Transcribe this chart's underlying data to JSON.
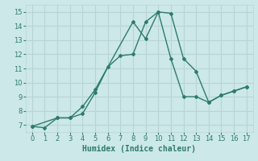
{
  "xlabel": "Humidex (Indice chaleur)",
  "xlim": [
    -0.5,
    17.5
  ],
  "ylim": [
    6.5,
    15.5
  ],
  "xticks": [
    0,
    1,
    2,
    3,
    4,
    5,
    6,
    7,
    8,
    9,
    10,
    11,
    12,
    13,
    14,
    15,
    16,
    17
  ],
  "yticks": [
    7,
    8,
    9,
    10,
    11,
    12,
    13,
    14,
    15
  ],
  "background_color": "#cce8e8",
  "grid_color": "#b8d4d4",
  "line_color": "#2e7b6e",
  "line1_x": [
    0,
    1,
    2,
    3,
    4,
    5,
    8,
    9,
    10,
    11,
    12,
    13,
    14,
    15,
    16,
    17
  ],
  "line1_y": [
    6.9,
    6.8,
    7.5,
    7.5,
    8.3,
    9.5,
    14.3,
    13.1,
    15.0,
    14.9,
    11.7,
    10.8,
    8.6,
    9.1,
    9.4,
    9.7
  ],
  "line2_x": [
    0,
    2,
    3,
    4,
    5,
    6,
    7,
    8,
    9,
    10,
    11,
    12,
    13,
    14,
    15,
    16,
    17
  ],
  "line2_y": [
    6.9,
    7.5,
    7.5,
    7.8,
    9.3,
    11.1,
    11.9,
    12.0,
    14.3,
    15.0,
    11.7,
    9.0,
    9.0,
    8.6,
    9.1,
    9.4,
    9.7
  ]
}
